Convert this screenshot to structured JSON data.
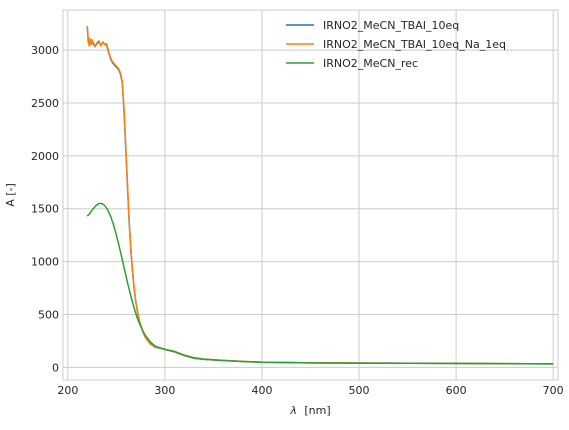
{
  "chart_data": {
    "type": "line",
    "xlabel_symbol": "λ",
    "xlabel_unit": "[nm]",
    "ylabel": "A [-]",
    "xlim": [
      195,
      705
    ],
    "ylim": [
      -120,
      3380
    ],
    "xticks": [
      200,
      300,
      400,
      500,
      600,
      700
    ],
    "yticks": [
      0,
      500,
      1000,
      1500,
      2000,
      2500,
      3000
    ],
    "grid": true,
    "legend_position": "top-right",
    "series": [
      {
        "name": "IRNO2_MeCN_TBAI_10eq",
        "color": "#1f77b4",
        "x": [
          220,
          221,
          222,
          223,
          224,
          225,
          226,
          228,
          230,
          232,
          234,
          236,
          238,
          240,
          242,
          244,
          246,
          248,
          250,
          252,
          254,
          256,
          258,
          260,
          261,
          262,
          263,
          264,
          265,
          266,
          267,
          268,
          270,
          272,
          274,
          276,
          278,
          280,
          285,
          290,
          300,
          310,
          320,
          330,
          340,
          360,
          380,
          400,
          450,
          500,
          550,
          600,
          650,
          700
        ],
        "y": [
          3220,
          3080,
          3050,
          3100,
          3060,
          3090,
          3070,
          3040,
          3060,
          3080,
          3050,
          3070,
          3060,
          3050,
          2980,
          2920,
          2880,
          2860,
          2840,
          2820,
          2780,
          2700,
          2400,
          2000,
          1800,
          1600,
          1400,
          1250,
          1100,
          980,
          870,
          770,
          620,
          510,
          430,
          370,
          320,
          280,
          220,
          190,
          170,
          145,
          110,
          85,
          75,
          65,
          55,
          48,
          42,
          40,
          38,
          36,
          34,
          32
        ]
      },
      {
        "name": "IRNO2_MeCN_TBAI_10eq_Na_1eq",
        "color": "#ff7f0e",
        "x": [
          220,
          221,
          222,
          223,
          224,
          225,
          226,
          228,
          230,
          232,
          234,
          236,
          238,
          240,
          242,
          244,
          246,
          248,
          250,
          252,
          254,
          256,
          258,
          260,
          261,
          262,
          263,
          264,
          265,
          266,
          267,
          268,
          270,
          272,
          274,
          276,
          278,
          280,
          285,
          290,
          300,
          310,
          320,
          330,
          340,
          360,
          380,
          400,
          450,
          500,
          550,
          600,
          650,
          700
        ],
        "y": [
          3230,
          3100,
          3040,
          3110,
          3050,
          3100,
          3060,
          3030,
          3070,
          3090,
          3040,
          3080,
          3050,
          3060,
          2990,
          2930,
          2890,
          2870,
          2850,
          2830,
          2790,
          2710,
          2420,
          2020,
          1820,
          1620,
          1420,
          1260,
          1110,
          990,
          880,
          780,
          625,
          515,
          435,
          372,
          322,
          282,
          222,
          191,
          171,
          146,
          111,
          86,
          76,
          66,
          56,
          49,
          43,
          41,
          39,
          37,
          35,
          33
        ]
      },
      {
        "name": "IRNO2_MeCN_rec",
        "color": "#2ca02c",
        "x": [
          220,
          223,
          226,
          229,
          232,
          235,
          238,
          241,
          244,
          247,
          250,
          253,
          256,
          259,
          262,
          265,
          268,
          271,
          274,
          277,
          280,
          285,
          290,
          300,
          310,
          320,
          330,
          340,
          360,
          380,
          400,
          450,
          500,
          550,
          600,
          650,
          700
        ],
        "y": [
          1430,
          1460,
          1500,
          1530,
          1550,
          1550,
          1530,
          1490,
          1430,
          1350,
          1250,
          1140,
          1020,
          900,
          780,
          670,
          570,
          480,
          410,
          350,
          300,
          240,
          200,
          170,
          150,
          115,
          90,
          78,
          65,
          55,
          48,
          42,
          40,
          38,
          37,
          35,
          33
        ]
      }
    ]
  }
}
